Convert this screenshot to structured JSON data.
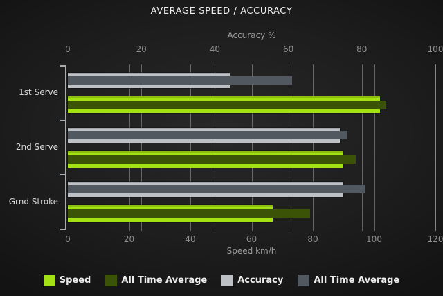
{
  "title": "AVERAGE SPEED / ACCURACY",
  "chart_data": {
    "type": "bar",
    "orientation": "horizontal",
    "title": "AVERAGE SPEED / ACCURACY",
    "categories": [
      "1st Serve",
      "2nd Serve",
      "Grnd Stroke"
    ],
    "series": [
      {
        "name": "Speed",
        "axis": "speed",
        "role": "outer",
        "color": "#a3e114",
        "values": [
          102,
          90,
          67
        ]
      },
      {
        "name": "All Time Average",
        "axis": "speed",
        "role": "inner",
        "color": "#3b5306",
        "values": [
          104,
          94,
          79
        ]
      },
      {
        "name": "Accuracy",
        "axis": "accuracy",
        "role": "outer",
        "color": "#bdc1c6",
        "values": [
          44,
          74,
          75
        ]
      },
      {
        "name": "All Time Average",
        "axis": "accuracy",
        "role": "inner",
        "color": "#515860",
        "values": [
          61,
          76,
          81
        ]
      }
    ],
    "axes": {
      "top": {
        "label": "Accuracy %",
        "ticks": [
          0,
          20,
          40,
          60,
          80,
          100
        ],
        "range": [
          0,
          100
        ]
      },
      "bottom": {
        "label": "Speed km/h",
        "ticks": [
          0,
          20,
          40,
          60,
          80,
          100,
          120
        ],
        "range": [
          0,
          120
        ]
      }
    },
    "grid": true,
    "legend_position": "bottom",
    "legend": [
      "Speed",
      "All Time Average",
      "Accuracy",
      "All Time Average"
    ]
  },
  "colors": {
    "background_center": "#282828",
    "background_edge": "#131313",
    "speed": "#a3e114",
    "speed_all_time": "#3b5306",
    "accuracy": "#bdc1c6",
    "accuracy_all_time": "#515860",
    "gridline": "#aaaaaa",
    "axis_line": "#a9adb0",
    "tick_text": "#8f8f8f",
    "title_text": "#f0f0f0",
    "category_text": "#d9d9d9",
    "legend_text": "#ececec"
  }
}
